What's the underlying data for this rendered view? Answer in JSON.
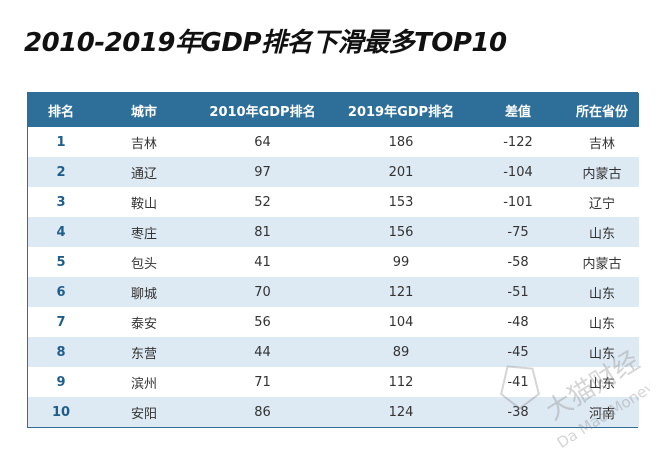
{
  "title": "2010-2019年GDP排名下滑最多TOP10",
  "table": {
    "headers": [
      "排名",
      "城市",
      "2010年GDP排名",
      "2019年GDP排名",
      "差值",
      "所在省份"
    ],
    "rows": [
      {
        "rank": "1",
        "city": "吉林",
        "rank2010": "64",
        "rank2019": "186",
        "diff": "-122",
        "province": "吉林"
      },
      {
        "rank": "2",
        "city": "通辽",
        "rank2010": "97",
        "rank2019": "201",
        "diff": "-104",
        "province": "内蒙古"
      },
      {
        "rank": "3",
        "city": "鞍山",
        "rank2010": "52",
        "rank2019": "153",
        "diff": "-101",
        "province": "辽宁"
      },
      {
        "rank": "4",
        "city": "枣庄",
        "rank2010": "81",
        "rank2019": "156",
        "diff": "-75",
        "province": "山东"
      },
      {
        "rank": "5",
        "city": "包头",
        "rank2010": "41",
        "rank2019": "99",
        "diff": "-58",
        "province": "内蒙古"
      },
      {
        "rank": "6",
        "city": "聊城",
        "rank2010": "70",
        "rank2019": "121",
        "diff": "-51",
        "province": "山东"
      },
      {
        "rank": "7",
        "city": "泰安",
        "rank2010": "56",
        "rank2019": "104",
        "diff": "-48",
        "province": "山东"
      },
      {
        "rank": "8",
        "city": "东营",
        "rank2010": "44",
        "rank2019": "89",
        "diff": "-45",
        "province": "山东"
      },
      {
        "rank": "9",
        "city": "滨州",
        "rank2010": "71",
        "rank2019": "112",
        "diff": "-41",
        "province": "山东"
      },
      {
        "rank": "10",
        "city": "安阳",
        "rank2010": "86",
        "rank2019": "124",
        "diff": "-38",
        "province": "河南"
      }
    ]
  },
  "watermark": {
    "text_cn": "大猫财经",
    "text_en": "Da Mao Money"
  },
  "colors": {
    "header_bg": "#2e6f9a",
    "stripe": "#dde9f3",
    "rank_text": "#1f5e8a"
  }
}
